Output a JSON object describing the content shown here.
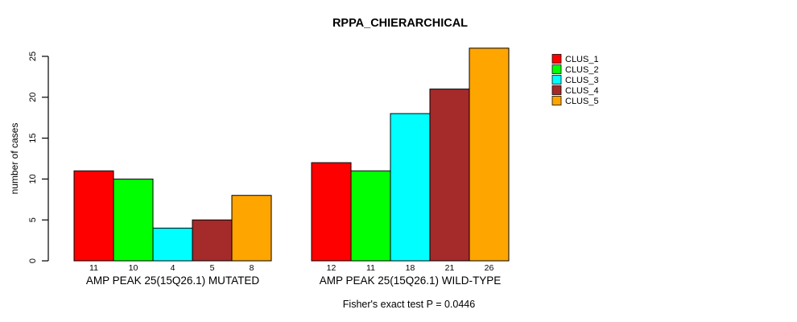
{
  "chart_data": {
    "type": "bar",
    "title": "RPPA_CHIERARCHICAL",
    "ylabel": "number of cases",
    "xlabel": "",
    "ylim": [
      0,
      25
    ],
    "yticks": [
      0,
      5,
      10,
      15,
      20,
      25
    ],
    "grid": false,
    "show_bar_values": true,
    "categories": [
      "AMP PEAK 25(15Q26.1) MUTATED",
      "AMP PEAK 25(15Q26.1) WILD-TYPE"
    ],
    "series": [
      {
        "name": "CLUS_1",
        "color": "#FF0000",
        "values": [
          11,
          12
        ]
      },
      {
        "name": "CLUS_2",
        "color": "#00FF00",
        "values": [
          10,
          11
        ]
      },
      {
        "name": "CLUS_3",
        "color": "#00FFFF",
        "values": [
          4,
          18
        ]
      },
      {
        "name": "CLUS_4",
        "color": "#A52A2A",
        "values": [
          5,
          21
        ]
      },
      {
        "name": "CLUS_5",
        "color": "#FFA500",
        "values": [
          8,
          26
        ]
      }
    ],
    "legend": {
      "position": "topright",
      "entries": [
        "CLUS_1",
        "CLUS_2",
        "CLUS_3",
        "CLUS_4",
        "CLUS_5"
      ]
    },
    "annotation": "Fisher's exact test P = 0.0446",
    "axis_color": "#000000",
    "bar_border_color": "#000000",
    "background_color": "#FFFFFF"
  }
}
